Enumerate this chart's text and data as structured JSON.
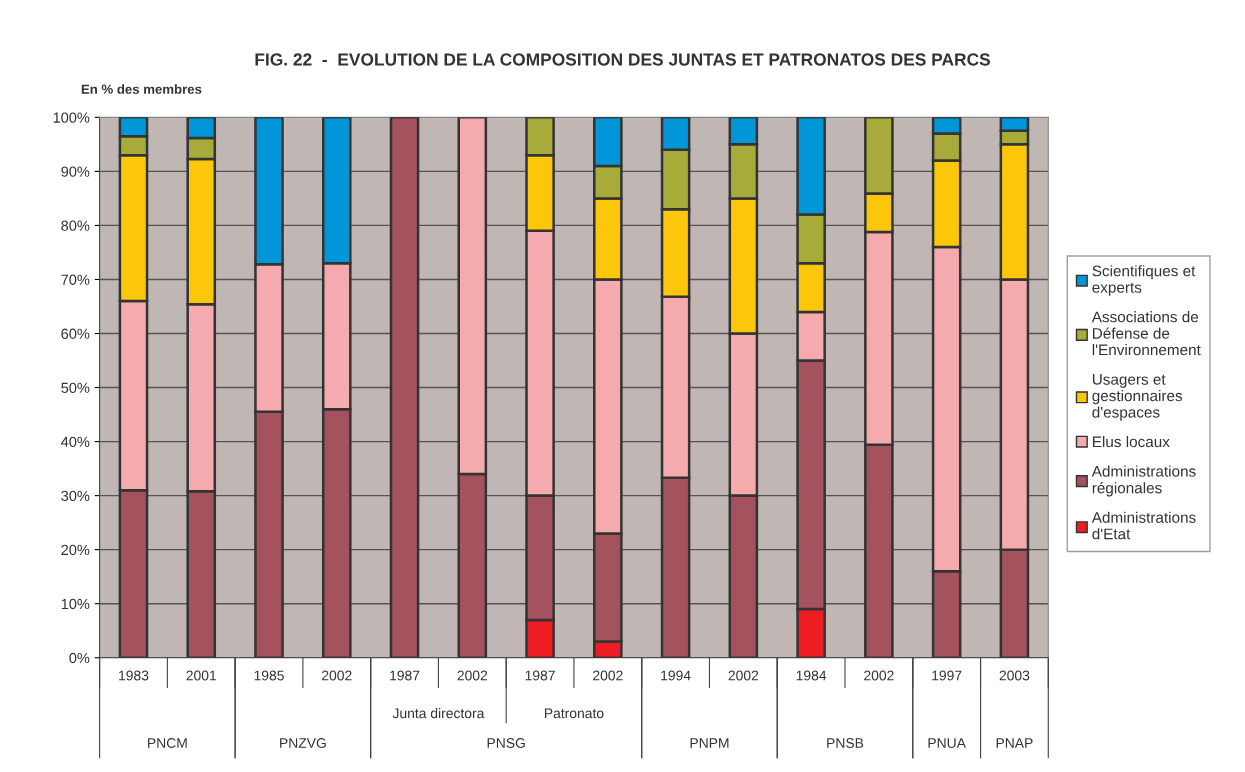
{
  "chart_data": {
    "type": "bar",
    "stacked": true,
    "title": "FIG. 22  -  EVOLUTION DE LA COMPOSITION DES JUNTAS ET PATRONATOS DES PARCS",
    "ylabel": "En % des membres",
    "categories": [
      "1983",
      "2001",
      "1985",
      "2002",
      "1987",
      "2002",
      "1987",
      "2002",
      "1994",
      "2002",
      "1984",
      "2002",
      "1997",
      "2003"
    ],
    "series": [
      {
        "name": "Administrations\nd'Etat",
        "color": "#ee1d23",
        "values": [
          null,
          null,
          null,
          null,
          null,
          null,
          7,
          3,
          null,
          null,
          9,
          null,
          null,
          null
        ]
      },
      {
        "name": "Administrations\nrégionales",
        "color": "#a5525f",
        "values": [
          31,
          30.8,
          45.5,
          46,
          100,
          34,
          23,
          20,
          33.3,
          30,
          46,
          39.4,
          16,
          20
        ]
      },
      {
        "name": "Elus locaux",
        "color": "#f5aaae",
        "values": [
          35,
          34.6,
          27.3,
          27,
          null,
          66,
          49,
          47,
          33.5,
          30,
          9,
          39.4,
          60,
          50
        ]
      },
      {
        "name": "Usagers et\ngestionnaires\nd'espaces",
        "color": "#fcc70a",
        "values": [
          27,
          26.9,
          null,
          null,
          null,
          null,
          14,
          15,
          16.2,
          25,
          9,
          7.1,
          16,
          25
        ]
      },
      {
        "name": "Associations de\nDéfense de\nl'Environnement",
        "color": "#a6ab3a",
        "values": [
          3.5,
          3.9,
          null,
          null,
          null,
          null,
          7,
          6,
          11,
          10,
          9,
          14.1,
          5,
          2.5
        ]
      },
      {
        "name": "Scientifiques et\nexperts",
        "color": "#0096d8",
        "values": [
          3.5,
          3.8,
          27.2,
          27,
          null,
          null,
          null,
          9,
          6,
          5,
          18,
          null,
          3,
          2.5
        ]
      }
    ],
    "ylim": [
      0,
      100
    ],
    "yticks": [
      {
        "value": 0,
        "label": "0%"
      },
      {
        "value": 10,
        "label": "10%"
      },
      {
        "value": 20,
        "label": "20%"
      },
      {
        "value": 30,
        "label": "30%"
      },
      {
        "value": 40,
        "label": "40%"
      },
      {
        "value": 50,
        "label": "50%"
      },
      {
        "value": 60,
        "label": "60%"
      },
      {
        "value": 70,
        "label": "70%"
      },
      {
        "value": 80,
        "label": "80%"
      },
      {
        "value": 90,
        "label": "90%"
      },
      {
        "value": 100,
        "label": "100%"
      }
    ],
    "grid": "y",
    "legend": "right",
    "annotations": [
      "Junta directora",
      "Patronato",
      "PNCM",
      "PNZVG",
      "PNSG",
      "PNPM",
      "PNSB",
      "PNUA",
      "PNAP"
    ]
  }
}
